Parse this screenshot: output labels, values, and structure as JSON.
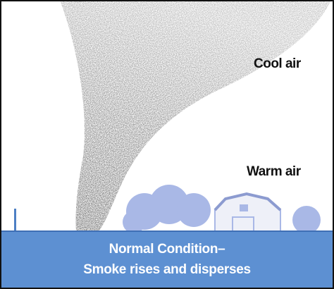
{
  "labels": {
    "cool_air": "Cool air",
    "warm_air": "Warm air"
  },
  "caption": {
    "line1": "Normal Condition–",
    "line2": "Smoke rises and disperses"
  }
}
